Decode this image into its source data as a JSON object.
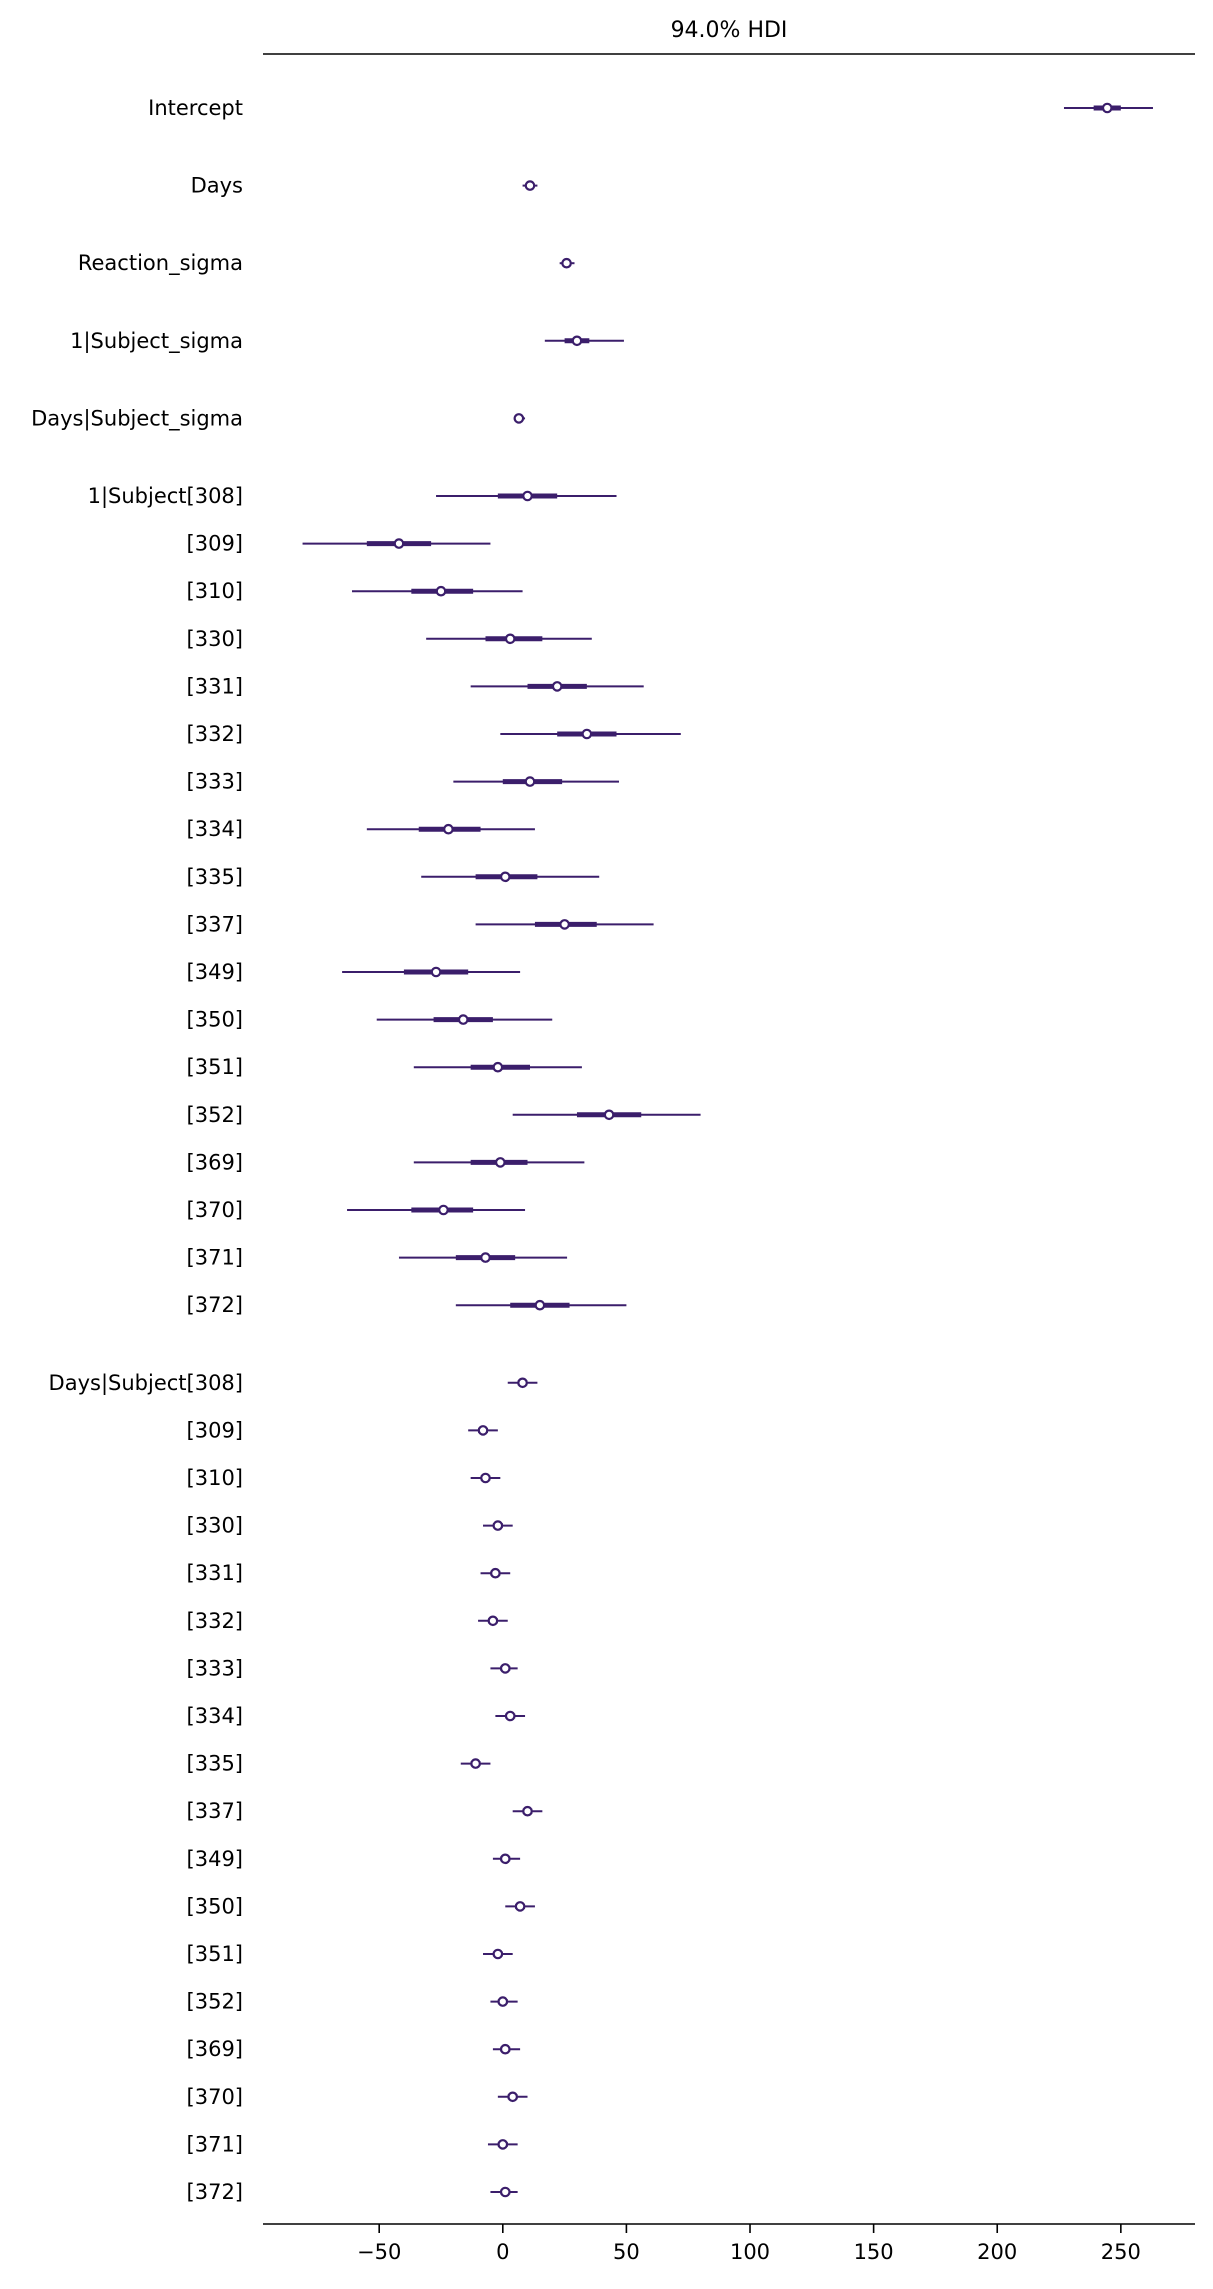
{
  "chart_data": {
    "type": "forest",
    "title": "94.0% HDI",
    "xlabel": "",
    "ylabel": "",
    "xlim": [
      -97,
      280
    ],
    "x_ticks": [
      -50,
      0,
      50,
      100,
      150,
      200,
      250
    ],
    "x_tick_labels": [
      "−50",
      "0",
      "50",
      "100",
      "150",
      "200",
      "250"
    ],
    "grid": false,
    "colors": {
      "line": "#3b1e6b",
      "point_fill": "#ffffff",
      "axis": "#000000"
    },
    "groups": [
      {
        "rows": [
          {
            "label": "Intercept",
            "mean": 244.5,
            "hdi": [
              227,
              263
            ],
            "iqr": [
              239,
              250
            ]
          }
        ]
      },
      {
        "rows": [
          {
            "label": "Days",
            "mean": 11.0,
            "hdi": [
              8,
              14
            ],
            "iqr": [
              10,
              12
            ]
          }
        ]
      },
      {
        "rows": [
          {
            "label": "Reaction_sigma",
            "mean": 25.8,
            "hdi": [
              23,
              29
            ],
            "iqr": [
              25,
              27
            ]
          }
        ]
      },
      {
        "rows": [
          {
            "label": "1|Subject_sigma",
            "mean": 30.0,
            "hdi": [
              17,
              49
            ],
            "iqr": [
              25,
              35
            ]
          }
        ]
      },
      {
        "rows": [
          {
            "label": "Days|Subject_sigma",
            "mean": 6.5,
            "hdi": [
              4.5,
              9
            ],
            "iqr": [
              5.5,
              7.5
            ]
          }
        ]
      },
      {
        "rows": [
          {
            "label": "1|Subject[308]",
            "mean": 10,
            "hdi": [
              -27,
              46
            ],
            "iqr": [
              -2,
              22
            ]
          },
          {
            "label": "[309]",
            "mean": -42,
            "hdi": [
              -81,
              -5
            ],
            "iqr": [
              -55,
              -29
            ]
          },
          {
            "label": "[310]",
            "mean": -25,
            "hdi": [
              -61,
              8
            ],
            "iqr": [
              -37,
              -12
            ]
          },
          {
            "label": "[330]",
            "mean": 3,
            "hdi": [
              -31,
              36
            ],
            "iqr": [
              -7,
              16
            ]
          },
          {
            "label": "[331]",
            "mean": 22,
            "hdi": [
              -13,
              57
            ],
            "iqr": [
              10,
              34
            ]
          },
          {
            "label": "[332]",
            "mean": 34,
            "hdi": [
              -1,
              72
            ],
            "iqr": [
              22,
              46
            ]
          },
          {
            "label": "[333]",
            "mean": 11,
            "hdi": [
              -20,
              47
            ],
            "iqr": [
              0,
              24
            ]
          },
          {
            "label": "[334]",
            "mean": -22,
            "hdi": [
              -55,
              13
            ],
            "iqr": [
              -34,
              -9
            ]
          },
          {
            "label": "[335]",
            "mean": 1,
            "hdi": [
              -33,
              39
            ],
            "iqr": [
              -11,
              14
            ]
          },
          {
            "label": "[337]",
            "mean": 25,
            "hdi": [
              -11,
              61
            ],
            "iqr": [
              13,
              38
            ]
          },
          {
            "label": "[349]",
            "mean": -27,
            "hdi": [
              -65,
              7
            ],
            "iqr": [
              -40,
              -14
            ]
          },
          {
            "label": "[350]",
            "mean": -16,
            "hdi": [
              -51,
              20
            ],
            "iqr": [
              -28,
              -4
            ]
          },
          {
            "label": "[351]",
            "mean": -2,
            "hdi": [
              -36,
              32
            ],
            "iqr": [
              -13,
              11
            ]
          },
          {
            "label": "[352]",
            "mean": 43,
            "hdi": [
              4,
              80
            ],
            "iqr": [
              30,
              56
            ]
          },
          {
            "label": "[369]",
            "mean": -1,
            "hdi": [
              -36,
              33
            ],
            "iqr": [
              -13,
              10
            ]
          },
          {
            "label": "[370]",
            "mean": -24,
            "hdi": [
              -63,
              9
            ],
            "iqr": [
              -37,
              -12
            ]
          },
          {
            "label": "[371]",
            "mean": -7,
            "hdi": [
              -42,
              26
            ],
            "iqr": [
              -19,
              5
            ]
          },
          {
            "label": "[372]",
            "mean": 15,
            "hdi": [
              -19,
              50
            ],
            "iqr": [
              3,
              27
            ]
          }
        ]
      },
      {
        "rows": [
          {
            "label": "Days|Subject[308]",
            "mean": 8,
            "hdi": [
              2,
              14
            ],
            "iqr": [
              6,
              10
            ]
          },
          {
            "label": "[309]",
            "mean": -8,
            "hdi": [
              -14,
              -2
            ],
            "iqr": [
              -10,
              -6
            ]
          },
          {
            "label": "[310]",
            "mean": -7,
            "hdi": [
              -13,
              -1
            ],
            "iqr": [
              -9,
              -5
            ]
          },
          {
            "label": "[330]",
            "mean": -2,
            "hdi": [
              -8,
              4
            ],
            "iqr": [
              -4,
              0
            ]
          },
          {
            "label": "[331]",
            "mean": -3,
            "hdi": [
              -9,
              3
            ],
            "iqr": [
              -5,
              -1
            ]
          },
          {
            "label": "[332]",
            "mean": -4,
            "hdi": [
              -10,
              2
            ],
            "iqr": [
              -6,
              -2
            ]
          },
          {
            "label": "[333]",
            "mean": 1,
            "hdi": [
              -5,
              6
            ],
            "iqr": [
              -1,
              3
            ]
          },
          {
            "label": "[334]",
            "mean": 3,
            "hdi": [
              -3,
              9
            ],
            "iqr": [
              1,
              5
            ]
          },
          {
            "label": "[335]",
            "mean": -11,
            "hdi": [
              -17,
              -5
            ],
            "iqr": [
              -13,
              -9
            ]
          },
          {
            "label": "[337]",
            "mean": 10,
            "hdi": [
              4,
              16
            ],
            "iqr": [
              8,
              12
            ]
          },
          {
            "label": "[349]",
            "mean": 1,
            "hdi": [
              -4,
              7
            ],
            "iqr": [
              -1,
              3
            ]
          },
          {
            "label": "[350]",
            "mean": 7,
            "hdi": [
              1,
              13
            ],
            "iqr": [
              5,
              9
            ]
          },
          {
            "label": "[351]",
            "mean": -2,
            "hdi": [
              -8,
              4
            ],
            "iqr": [
              -4,
              0
            ]
          },
          {
            "label": "[352]",
            "mean": 0,
            "hdi": [
              -5,
              6
            ],
            "iqr": [
              -2,
              2
            ]
          },
          {
            "label": "[369]",
            "mean": 1,
            "hdi": [
              -4,
              7
            ],
            "iqr": [
              -1,
              3
            ]
          },
          {
            "label": "[370]",
            "mean": 4,
            "hdi": [
              -2,
              10
            ],
            "iqr": [
              2,
              6
            ]
          },
          {
            "label": "[371]",
            "mean": 0,
            "hdi": [
              -6,
              6
            ],
            "iqr": [
              -2,
              2
            ]
          },
          {
            "label": "[372]",
            "mean": 1,
            "hdi": [
              -5,
              6
            ],
            "iqr": [
              -1,
              3
            ]
          }
        ]
      }
    ]
  }
}
